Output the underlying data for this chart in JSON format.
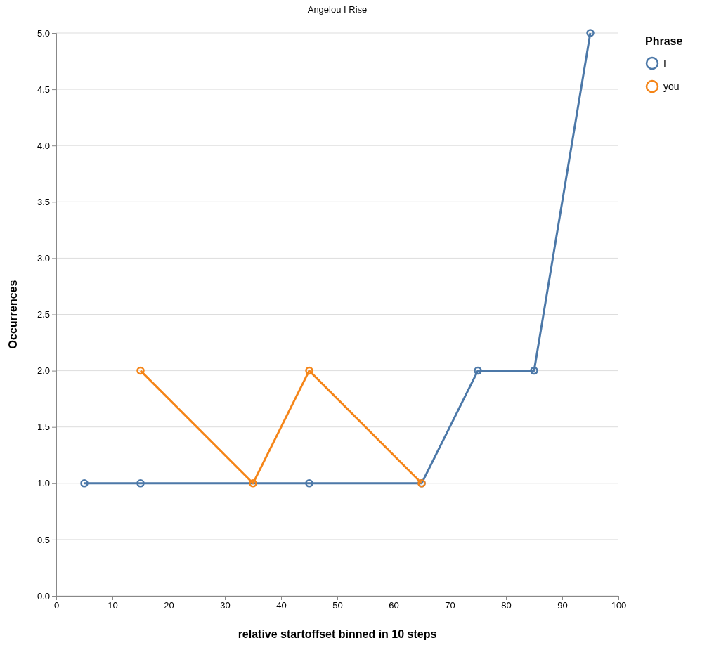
{
  "chart_data": {
    "type": "line",
    "title": "Angelou I Rise",
    "xlabel": "relative startoffset binned in 10 steps",
    "ylabel": "Occurrences",
    "legend_title": "Phrase",
    "series": [
      {
        "name": "I",
        "color": "#4c78a8",
        "x": [
          5,
          15,
          45,
          65,
          75,
          85,
          95
        ],
        "values": [
          1,
          1,
          1,
          1,
          2,
          2,
          5
        ]
      },
      {
        "name": "you",
        "color": "#f58518",
        "x": [
          15,
          35,
          45,
          65
        ],
        "values": [
          2,
          1,
          2,
          1
        ]
      }
    ],
    "xlim": [
      0,
      100
    ],
    "xticks": [
      0,
      10,
      20,
      30,
      40,
      50,
      60,
      70,
      80,
      90,
      100
    ],
    "ylim": [
      0,
      5
    ],
    "yticks": [
      {
        "value": 0,
        "label": "0.0"
      },
      {
        "value": 0.5,
        "label": "0.5"
      },
      {
        "value": 1,
        "label": "1.0"
      },
      {
        "value": 1.5,
        "label": "1.5"
      },
      {
        "value": 2,
        "label": "2.0"
      },
      {
        "value": 2.5,
        "label": "2.5"
      },
      {
        "value": 3,
        "label": "3.0"
      },
      {
        "value": 3.5,
        "label": "3.5"
      },
      {
        "value": 4,
        "label": "4.0"
      },
      {
        "value": 4.5,
        "label": "4.5"
      },
      {
        "value": 5,
        "label": "5.0"
      }
    ],
    "grid": "y",
    "legend": "top right",
    "marker": "circle",
    "line_style": "solid"
  }
}
